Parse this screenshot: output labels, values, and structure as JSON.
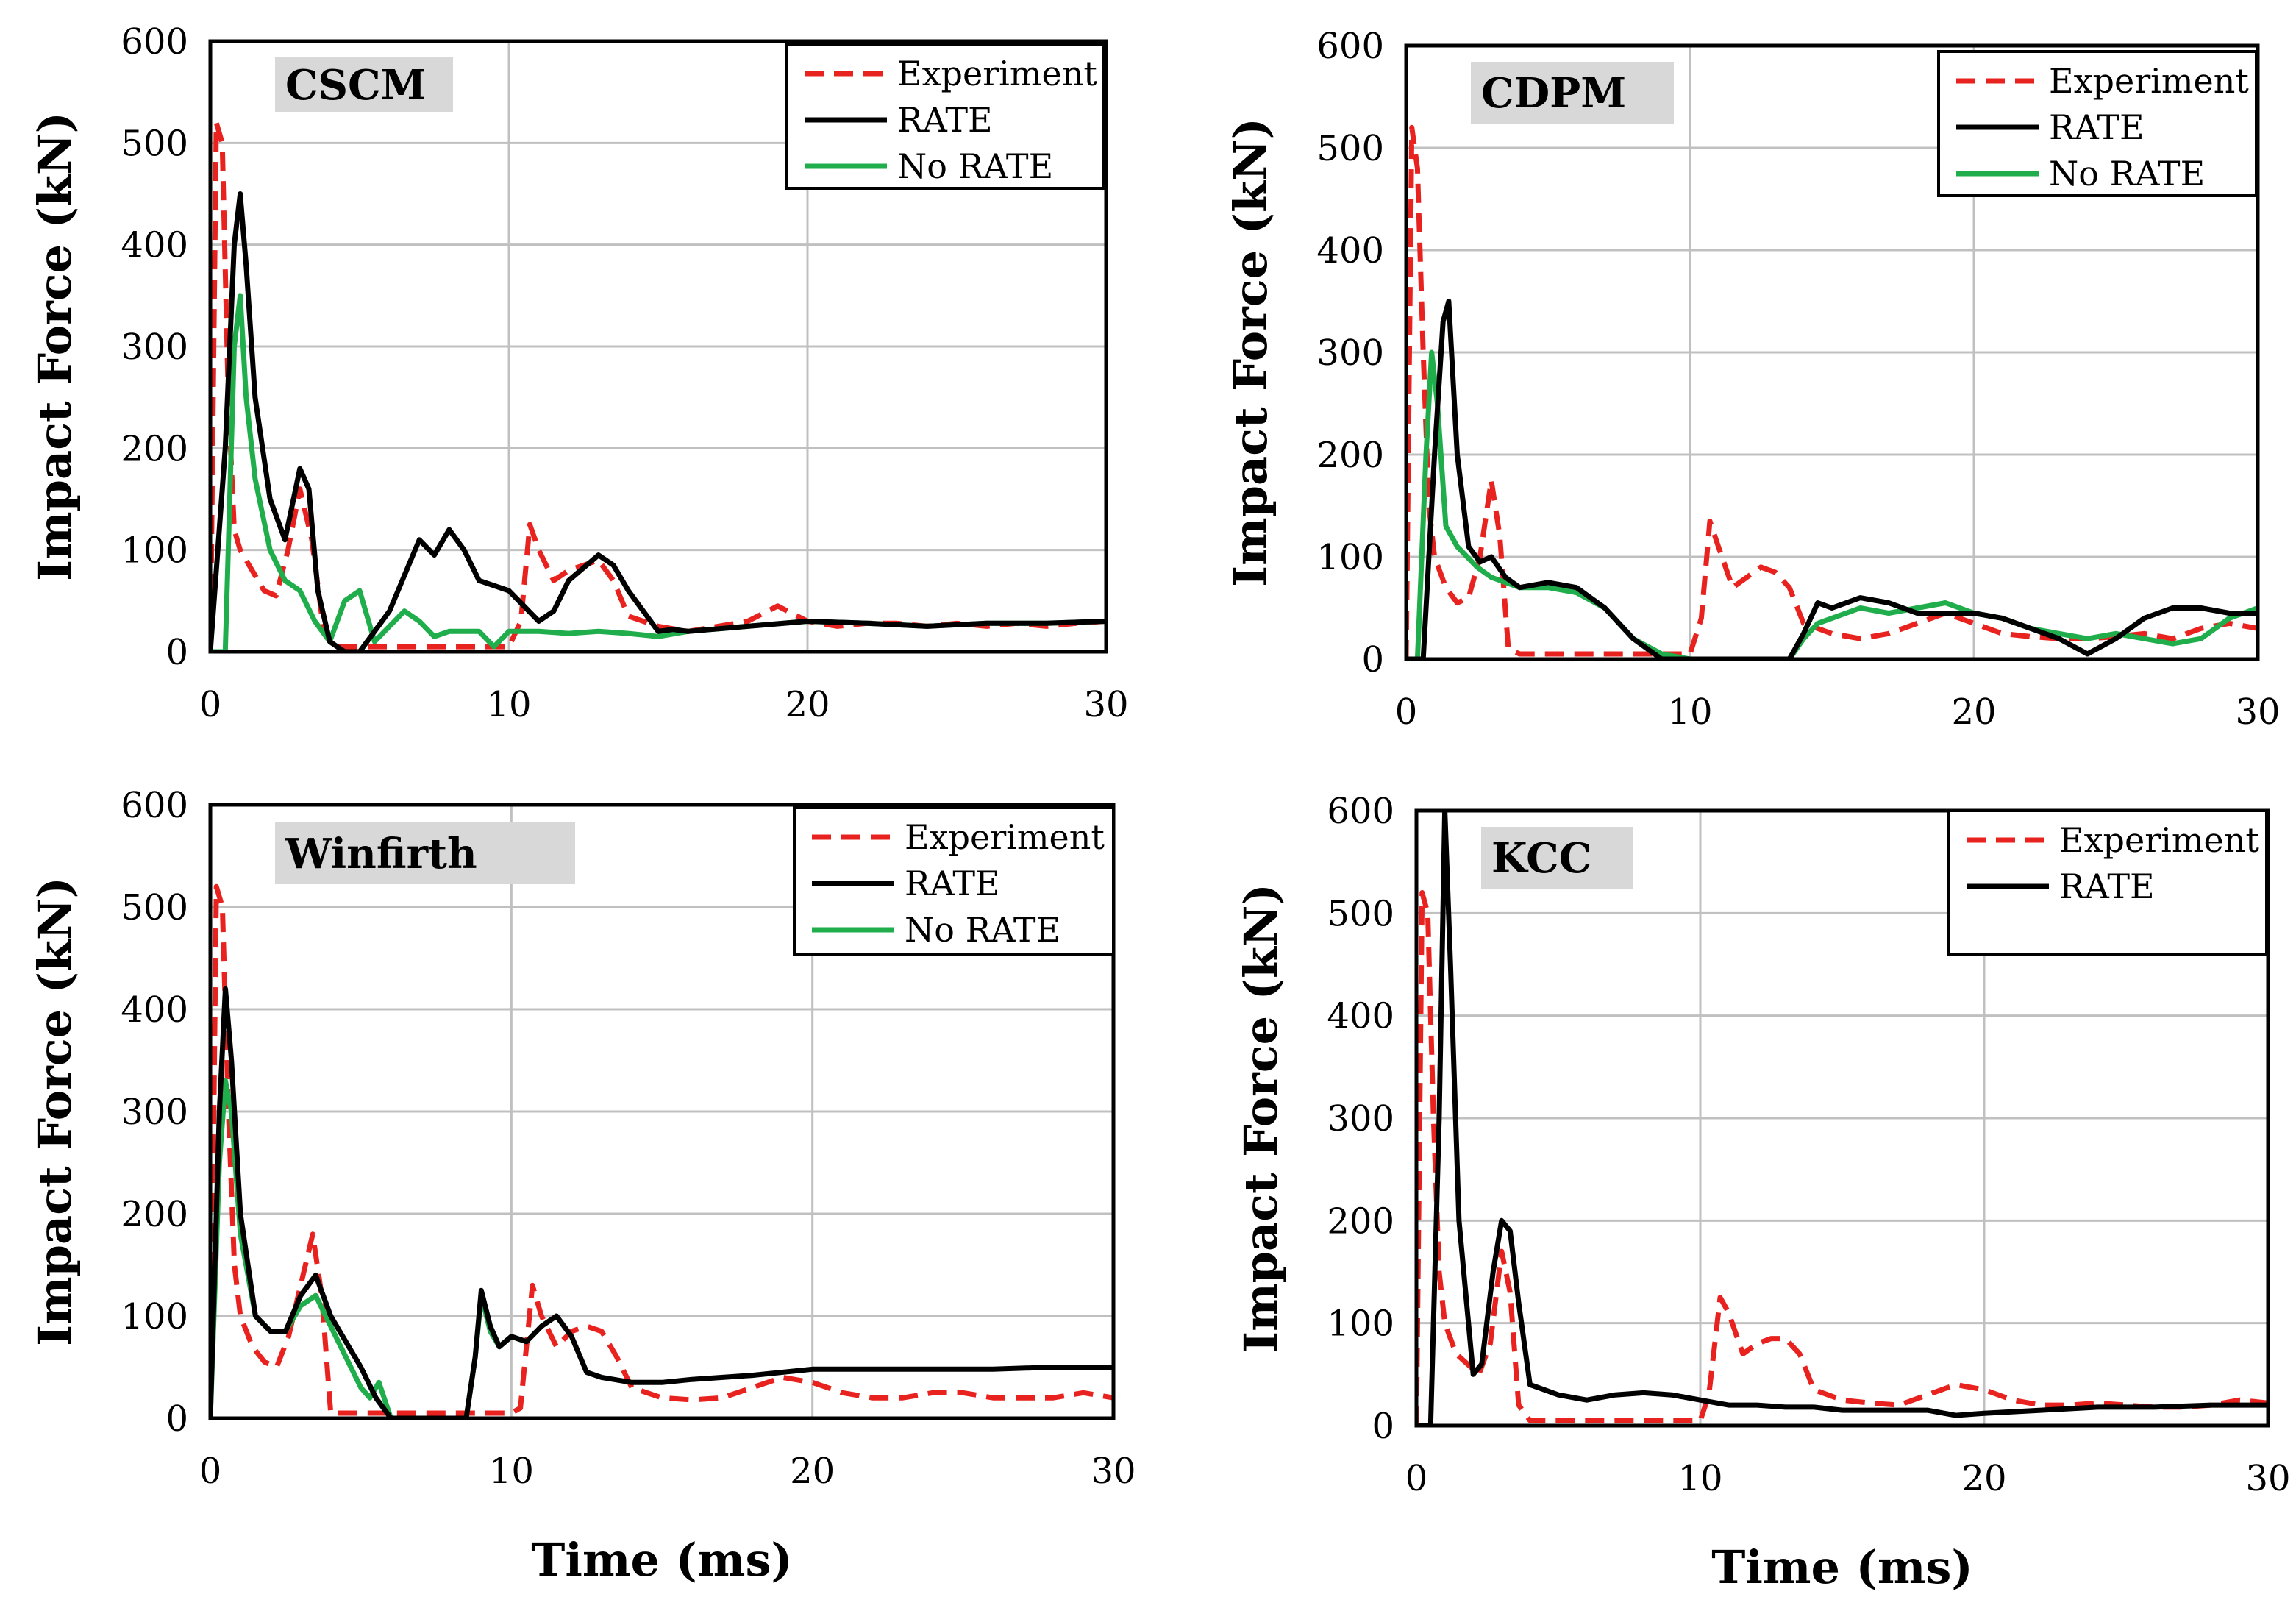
{
  "colors": {
    "experiment": "#e8231f",
    "rate": "#000000",
    "no_rate": "#1fae4b",
    "grid": "#c0c0c0",
    "label_box": "#d8d8d8"
  },
  "chart_data": [
    {
      "type": "line",
      "title": "CSCM",
      "xlabel": "",
      "ylabel": "Impact Force (kN)",
      "xlim": [
        0,
        30
      ],
      "ylim": [
        0,
        600
      ],
      "xticks": [
        "0",
        "10",
        "20",
        "30"
      ],
      "yticks": [
        "0",
        "100",
        "200",
        "300",
        "400",
        "500",
        "600"
      ],
      "legend": [
        "Experiment",
        "RATE",
        "No RATE"
      ],
      "legend_position": "top-right",
      "series": [
        {
          "name": "Experiment",
          "style": "dashed",
          "x": [
            0,
            0.2,
            0.4,
            0.6,
            0.8,
            1.0,
            1.4,
            1.8,
            2.2,
            2.6,
            3.0,
            3.4,
            3.8,
            4.2,
            5,
            6,
            8,
            10,
            10.4,
            10.7,
            11.0,
            11.5,
            12,
            12.5,
            13,
            13.5,
            14,
            15,
            16,
            17,
            18,
            19,
            20,
            21,
            22,
            23,
            24,
            25,
            26,
            27,
            28,
            29,
            30
          ],
          "y": [
            0,
            520,
            500,
            250,
            120,
            100,
            80,
            60,
            55,
            100,
            160,
            110,
            20,
            5,
            5,
            5,
            5,
            5,
            30,
            125,
            100,
            70,
            80,
            85,
            90,
            70,
            35,
            25,
            20,
            25,
            30,
            45,
            30,
            25,
            28,
            28,
            25,
            28,
            25,
            28,
            25,
            28,
            30
          ]
        },
        {
          "name": "RATE",
          "style": "solid",
          "x": [
            0,
            0.5,
            0.8,
            1.0,
            1.2,
            1.5,
            2.0,
            2.5,
            3.0,
            3.3,
            3.6,
            4.0,
            4.5,
            5,
            6,
            7,
            7.5,
            8,
            8.5,
            9,
            10,
            11,
            11.5,
            12,
            13,
            13.5,
            14,
            15,
            15.5,
            16,
            18,
            20,
            22,
            24,
            26,
            28,
            30
          ],
          "y": [
            0,
            200,
            400,
            450,
            380,
            250,
            150,
            110,
            180,
            160,
            60,
            10,
            0,
            0,
            40,
            110,
            95,
            120,
            100,
            70,
            60,
            30,
            40,
            70,
            95,
            85,
            60,
            20,
            22,
            20,
            25,
            30,
            28,
            25,
            28,
            28,
            30
          ]
        },
        {
          "name": "No RATE",
          "style": "solid",
          "x": [
            0,
            0.5,
            0.8,
            1.0,
            1.2,
            1.5,
            2.0,
            2.5,
            3.0,
            3.5,
            4.0,
            4.5,
            5,
            5.5,
            6,
            6.5,
            7,
            7.5,
            8,
            9,
            9.5,
            10,
            11,
            12,
            13,
            14,
            15,
            16,
            18,
            20,
            22,
            24,
            26,
            28,
            30
          ],
          "y": [
            0,
            0,
            300,
            350,
            250,
            170,
            100,
            70,
            60,
            30,
            10,
            50,
            60,
            10,
            25,
            40,
            30,
            15,
            20,
            20,
            5,
            20,
            20,
            18,
            20,
            18,
            15,
            20,
            25,
            30,
            28,
            25,
            28,
            28,
            30
          ]
        }
      ]
    },
    {
      "type": "line",
      "title": "CDPM",
      "xlabel": "",
      "ylabel": "Impact Force (kN)",
      "xlim": [
        0,
        30
      ],
      "ylim": [
        0,
        600
      ],
      "xticks": [
        "0",
        "10",
        "20",
        "30"
      ],
      "yticks": [
        "0",
        "100",
        "200",
        "300",
        "400",
        "500",
        "600"
      ],
      "legend": [
        "Experiment",
        "RATE",
        "No RATE"
      ],
      "legend_position": "top-right",
      "series": [
        {
          "name": "Experiment",
          "style": "dashed",
          "x": [
            0,
            0.2,
            0.4,
            0.6,
            0.8,
            1.0,
            1.4,
            1.8,
            2.2,
            2.6,
            3.0,
            3.3,
            3.6,
            4,
            5,
            8,
            10,
            10.4,
            10.7,
            11.0,
            11.5,
            12,
            12.5,
            13,
            13.5,
            14,
            15,
            16,
            17,
            18,
            19,
            20,
            21,
            22,
            23,
            24,
            25,
            26,
            27,
            28,
            29,
            30
          ],
          "y": [
            0,
            520,
            480,
            300,
            150,
            100,
            70,
            55,
            60,
            100,
            175,
            120,
            10,
            5,
            5,
            5,
            5,
            40,
            135,
            110,
            70,
            80,
            90,
            85,
            70,
            35,
            25,
            20,
            25,
            35,
            45,
            35,
            25,
            22,
            20,
            20,
            22,
            25,
            20,
            30,
            35,
            30
          ]
        },
        {
          "name": "RATE",
          "style": "solid",
          "x": [
            0,
            0.6,
            1.0,
            1.3,
            1.5,
            1.8,
            2.2,
            2.6,
            3.0,
            3.5,
            4,
            5,
            6,
            7,
            8,
            9,
            10,
            11,
            12,
            13,
            13.5,
            14,
            14.5,
            15,
            16,
            17,
            18,
            19,
            20,
            21,
            22,
            23,
            24,
            25,
            26,
            27,
            28,
            29,
            30
          ],
          "y": [
            0,
            0,
            200,
            330,
            350,
            200,
            110,
            95,
            100,
            80,
            70,
            75,
            70,
            50,
            20,
            0,
            0,
            0,
            0,
            0,
            0,
            25,
            55,
            50,
            60,
            55,
            45,
            45,
            45,
            40,
            30,
            20,
            5,
            20,
            40,
            50,
            50,
            45,
            45
          ]
        },
        {
          "name": "No RATE",
          "style": "solid",
          "x": [
            0,
            0.4,
            0.7,
            0.9,
            1.1,
            1.4,
            1.8,
            2.5,
            3,
            4,
            5,
            6,
            7,
            8,
            9,
            10,
            11,
            12,
            13,
            13.5,
            14,
            14.5,
            15,
            16,
            17,
            18,
            19,
            20,
            21,
            22,
            23,
            24,
            25,
            26,
            27,
            28,
            29,
            30
          ],
          "y": [
            0,
            0,
            200,
            300,
            250,
            130,
            110,
            90,
            80,
            70,
            70,
            65,
            50,
            20,
            5,
            0,
            0,
            0,
            0,
            0,
            20,
            35,
            40,
            50,
            45,
            50,
            55,
            45,
            40,
            30,
            25,
            20,
            25,
            20,
            15,
            20,
            40,
            50
          ]
        }
      ]
    },
    {
      "type": "line",
      "title": "Winfirth",
      "xlabel": "Time (ms)",
      "ylabel": "Impact Force (kN)",
      "xlim": [
        0,
        30
      ],
      "ylim": [
        0,
        600
      ],
      "xticks": [
        "0",
        "10",
        "20",
        "30"
      ],
      "yticks": [
        "0",
        "100",
        "200",
        "300",
        "400",
        "500",
        "600"
      ],
      "legend": [
        "Experiment",
        "RATE",
        "No RATE"
      ],
      "legend_position": "top-right",
      "series": [
        {
          "name": "Experiment",
          "style": "dashed",
          "x": [
            0,
            0.2,
            0.4,
            0.6,
            0.8,
            1.0,
            1.4,
            1.8,
            2.2,
            2.6,
            3.0,
            3.4,
            3.7,
            4,
            5,
            8,
            10,
            10.3,
            10.7,
            11.0,
            11.5,
            12,
            12.5,
            13,
            13.5,
            14,
            15,
            16,
            17,
            18,
            19,
            20,
            21,
            22,
            23,
            24,
            25,
            26,
            27,
            28,
            29,
            30
          ],
          "y": [
            0,
            520,
            500,
            300,
            150,
            100,
            70,
            55,
            50,
            80,
            130,
            180,
            120,
            5,
            5,
            5,
            5,
            10,
            130,
            100,
            70,
            85,
            90,
            85,
            60,
            30,
            20,
            18,
            20,
            30,
            40,
            35,
            25,
            20,
            20,
            25,
            25,
            20,
            20,
            20,
            25,
            20
          ]
        },
        {
          "name": "RATE",
          "style": "solid",
          "x": [
            0,
            0.3,
            0.5,
            0.7,
            1.0,
            1.5,
            2.0,
            2.5,
            3.0,
            3.5,
            4,
            5,
            5.5,
            6,
            6.5,
            8,
            8.5,
            8.8,
            9.0,
            9.3,
            9.6,
            10,
            10.5,
            11,
            11.5,
            12,
            12.5,
            13,
            14,
            15,
            16,
            18,
            20,
            22,
            24,
            26,
            28,
            30
          ],
          "y": [
            0,
            300,
            420,
            350,
            200,
            100,
            85,
            85,
            120,
            140,
            100,
            50,
            20,
            0,
            0,
            0,
            0,
            60,
            125,
            90,
            70,
            80,
            75,
            90,
            100,
            80,
            45,
            40,
            35,
            35,
            38,
            42,
            48,
            48,
            48,
            48,
            50,
            50
          ]
        },
        {
          "name": "No RATE",
          "style": "solid",
          "x": [
            0,
            0.3,
            0.5,
            0.7,
            1.0,
            1.5,
            2.0,
            2.5,
            3.0,
            3.5,
            4,
            4.5,
            5,
            5.3,
            5.6,
            6,
            8,
            8.5,
            8.8,
            9.0,
            9.3,
            9.6,
            10,
            10.5
          ],
          "y": [
            0,
            250,
            330,
            300,
            180,
            100,
            85,
            85,
            110,
            120,
            90,
            60,
            30,
            20,
            35,
            0,
            0,
            0,
            60,
            120,
            85,
            70,
            80,
            75
          ]
        }
      ]
    },
    {
      "type": "line",
      "title": "KCC",
      "xlabel": "Time (ms)",
      "ylabel": "Impact Force (kN)",
      "xlim": [
        0,
        30
      ],
      "ylim": [
        0,
        600
      ],
      "xticks": [
        "0",
        "10",
        "20",
        "30"
      ],
      "yticks": [
        "0",
        "100",
        "200",
        "300",
        "400",
        "500",
        "600"
      ],
      "legend": [
        "Experiment",
        "RATE"
      ],
      "legend_position": "top-right",
      "series": [
        {
          "name": "Experiment",
          "style": "dashed",
          "x": [
            0,
            0.2,
            0.4,
            0.6,
            0.8,
            1.0,
            1.4,
            1.8,
            2.2,
            2.6,
            3.0,
            3.3,
            3.6,
            4,
            5,
            8,
            10,
            10.3,
            10.7,
            11.0,
            11.5,
            12,
            12.5,
            13,
            13.5,
            14,
            15,
            16,
            17,
            18,
            19,
            20,
            21,
            22,
            23,
            24,
            25,
            26,
            27,
            28,
            29,
            30
          ],
          "y": [
            0,
            520,
            500,
            300,
            150,
            100,
            70,
            60,
            50,
            80,
            170,
            130,
            20,
            5,
            5,
            5,
            5,
            30,
            125,
            110,
            70,
            80,
            85,
            85,
            70,
            35,
            25,
            22,
            20,
            30,
            40,
            35,
            25,
            20,
            20,
            22,
            20,
            18,
            18,
            20,
            25,
            22
          ]
        },
        {
          "name": "RATE",
          "style": "solid",
          "x": [
            0,
            0.5,
            0.8,
            1.0,
            1.2,
            1.5,
            2.0,
            2.3,
            2.7,
            3.0,
            3.3,
            3.6,
            4,
            4.5,
            5,
            6,
            7,
            8,
            9,
            10,
            11,
            12,
            13,
            14,
            15,
            16,
            17,
            18,
            19,
            20,
            22,
            24,
            26,
            28,
            30
          ],
          "y": [
            0,
            0,
            300,
            600,
            450,
            200,
            50,
            60,
            150,
            200,
            190,
            120,
            40,
            35,
            30,
            25,
            30,
            32,
            30,
            25,
            20,
            20,
            18,
            18,
            15,
            15,
            15,
            15,
            10,
            12,
            15,
            18,
            18,
            20,
            20
          ]
        }
      ]
    }
  ]
}
